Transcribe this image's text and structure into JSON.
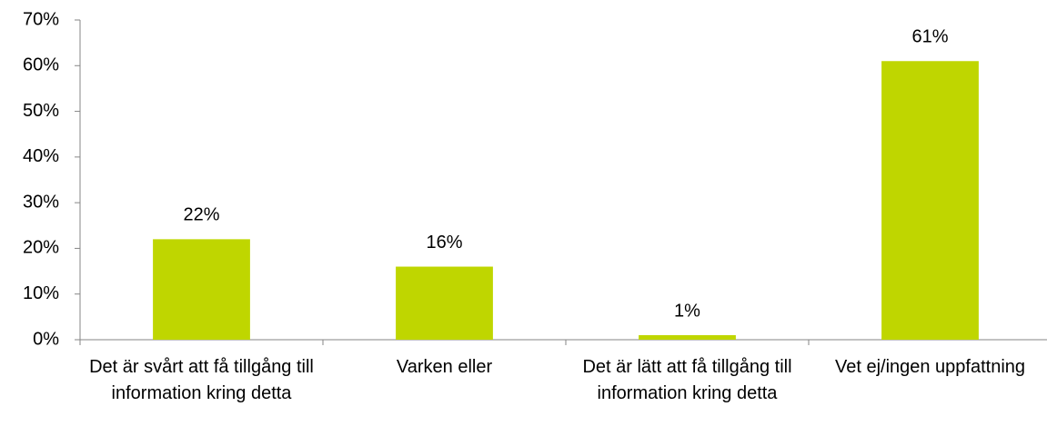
{
  "chart_data": {
    "type": "bar",
    "categories": [
      "Det är svårt att få tillgång till information kring detta",
      "Varken eller",
      "Det är lätt att få tillgång till information kring detta",
      "Vet ej/ingen uppfattning"
    ],
    "values": [
      22,
      16,
      1,
      61
    ],
    "value_labels": [
      "22%",
      "16%",
      "1%",
      "61%"
    ],
    "color": "#bfd600",
    "ylim": [
      0,
      70
    ],
    "yticks": [
      {
        "value": 0,
        "label": "0%"
      },
      {
        "value": 10,
        "label": "10%"
      },
      {
        "value": 20,
        "label": "20%"
      },
      {
        "value": 30,
        "label": "30%"
      },
      {
        "value": 40,
        "label": "40%"
      },
      {
        "value": 50,
        "label": "50%"
      },
      {
        "value": 60,
        "label": "60%"
      },
      {
        "value": 70,
        "label": "70%"
      }
    ]
  }
}
